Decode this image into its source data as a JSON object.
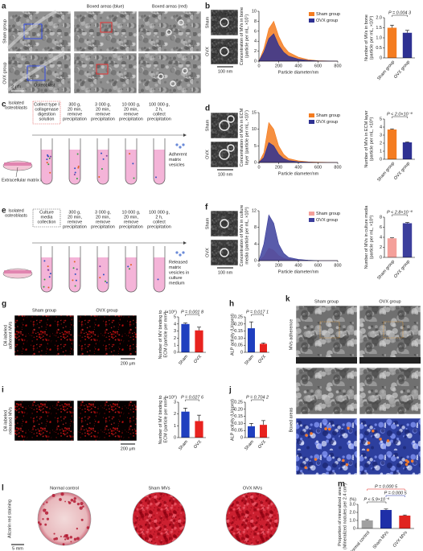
{
  "panel_letters": [
    "a",
    "b",
    "c",
    "d",
    "e",
    "f",
    "g",
    "h",
    "i",
    "j",
    "k",
    "l",
    "m"
  ],
  "a": {
    "rows": [
      "Sham group",
      "OVX group"
    ],
    "columns": [
      "Boxed areas (blue)",
      "Boxed areas (red)"
    ],
    "cell": "Osteoblast",
    "scale": "2 μm"
  },
  "b": {
    "rows": [
      "Sham",
      "OVX"
    ],
    "scale": "100 nm"
  },
  "c": {
    "start": [
      "Isolated",
      "osteoblasts"
    ],
    "collect": [
      "Collect type I",
      "collagenase",
      "digestion",
      "solution"
    ],
    "steps": [
      [
        "300 g,",
        "20 min,",
        "remove",
        "precipitation"
      ],
      [
        "3 000 g,",
        "20 min,",
        "remove",
        "precipitation"
      ],
      [
        "10 000 g,",
        "20 min,",
        "remove",
        "precipitation"
      ],
      [
        "100 000 g,",
        "2 h,",
        "collect",
        "precipitation"
      ]
    ],
    "layer": "Extracellular matrix layer",
    "product": [
      "Adherent",
      "matrix",
      "vesicles"
    ]
  },
  "d": {
    "rows": [
      "Sham",
      "OVX"
    ],
    "scale": "100 nm"
  },
  "e": {
    "start": [
      "Isolated",
      "osteoblasts"
    ],
    "collect": [
      "Culture",
      "media",
      "collection"
    ],
    "steps": [
      [
        "300 g,",
        "20 min,",
        "remove",
        "precipitation"
      ],
      [
        "3 000 g,",
        "20 min,",
        "remove",
        "precipitation"
      ],
      [
        "10 000 g,",
        "20 min,",
        "remove",
        "precipitation"
      ],
      [
        "100 000 g,",
        "2 h,",
        "collect",
        "precipitation"
      ]
    ],
    "product": [
      "Released",
      "matrix",
      "vesicles in",
      "culture",
      "medium"
    ]
  },
  "f": {
    "rows": [
      "Sham",
      "OVX"
    ],
    "scale": "100 nm"
  },
  "g": {
    "columns": [
      "Sham group",
      "OVX group"
    ],
    "row": [
      "DiI-labeled",
      "adherent MVs"
    ],
    "scale": "200 μm"
  },
  "i": {
    "row": [
      "DiI-labeled",
      "released MVs"
    ],
    "scale": "200 μm"
  },
  "k": {
    "columns": [
      "Sham group",
      "OVX group"
    ],
    "rows": [
      "MVs adherence",
      "Boxed areas"
    ]
  },
  "l": {
    "columns": [
      "Normal control",
      "Sham MVs",
      "OVX MVs"
    ],
    "row": "Alizarin red staining",
    "scale": "5 mm"
  },
  "chart_data": [
    {
      "type": "area",
      "ylabel": [
        "Concentration of MVs in bone",
        "(particle per mL, ×10⁷)"
      ],
      "xlabel": "Particle diameter/nm",
      "x": [
        0,
        50,
        100,
        150,
        200,
        250,
        300,
        400,
        500,
        600,
        800
      ],
      "xlim": [
        0,
        800
      ],
      "xticks": [
        0,
        200,
        400,
        600,
        800
      ],
      "ylim": [
        0,
        10
      ],
      "yticks": [
        0,
        2,
        4,
        6,
        8,
        10
      ],
      "series": [
        {
          "name": "Sham group",
          "color": "#f47c20",
          "values": [
            0,
            2.5,
            6.5,
            8,
            5,
            3,
            1.8,
            0.8,
            0.3,
            0.1,
            0
          ]
        },
        {
          "name": "OVX group",
          "color": "#2e3192",
          "values": [
            0,
            1.8,
            4.5,
            5.5,
            3.2,
            1.8,
            1,
            0.4,
            0.15,
            0.05,
            0
          ]
        }
      ]
    },
    {
      "type": "bar",
      "ylabel": [
        "Number of MVs in bone",
        "(particle per mL, ×10⁸)"
      ],
      "categories": [
        "Sham group",
        "OVX group"
      ],
      "values": [
        1.5,
        1.25
      ],
      "errors": [
        0.13,
        0.12
      ],
      "colors": [
        "#f47c20",
        "#2e3192"
      ],
      "ylim": [
        0,
        2
      ],
      "yticks": [
        0,
        {
          "value": 0.5,
          "label": "0.5"
        },
        {
          "value": 1,
          "label": "1.0"
        },
        {
          "value": 1.5,
          "label": "1.5"
        },
        {
          "value": 2,
          "label": "2.0"
        }
      ],
      "annotations": [
        "P = 0.004 3"
      ]
    },
    {
      "type": "area",
      "ylabel": [
        "Concentration of MVs in ECM",
        "layer (particle per mL, ×10⁷)"
      ],
      "xlabel": "Particle diameter/nm",
      "x": [
        0,
        50,
        100,
        150,
        200,
        250,
        300,
        400,
        500,
        600,
        800
      ],
      "xlim": [
        0,
        800
      ],
      "xticks": [
        0,
        200,
        400,
        600,
        800
      ],
      "ylim": [
        0,
        15
      ],
      "yticks": [
        0,
        5,
        10,
        15
      ],
      "series": [
        {
          "name": "Sham group",
          "color": "#f47c20",
          "values": [
            0,
            3,
            12,
            10,
            5,
            2.5,
            1.2,
            0.5,
            0.2,
            0.1,
            0
          ]
        },
        {
          "name": "OVX group",
          "color": "#2e3192",
          "values": [
            0,
            1.5,
            6,
            5,
            2.5,
            1.2,
            0.6,
            0.2,
            0.1,
            0,
            0
          ]
        }
      ]
    },
    {
      "type": "bar",
      "ylabel": [
        "Number of MVs in ECM layer",
        "(particle per mL, ×10⁸)"
      ],
      "categories": [
        "Sham group",
        "OVX group"
      ],
      "values": [
        3.7,
        2.1
      ],
      "errors": [
        0.08,
        0.05
      ],
      "colors": [
        "#f47c20",
        "#2e3192"
      ],
      "ylim": [
        0,
        5
      ],
      "yticks": [
        0,
        1,
        2,
        3,
        4,
        5
      ],
      "annotations": [
        "P < 2.0×10⁻⁸"
      ]
    },
    {
      "type": "area",
      "ylabel": [
        "Concentration of MVs in culture",
        "media (particle per mL, ×10⁶)"
      ],
      "xlabel": "Particle diameter/nm",
      "x": [
        0,
        50,
        100,
        150,
        200,
        250,
        300,
        400,
        500,
        600,
        800
      ],
      "xlim": [
        0,
        800
      ],
      "xticks": [
        0,
        200,
        400,
        600,
        800
      ],
      "ylim": [
        0,
        12
      ],
      "yticks": [
        0,
        4,
        8,
        12
      ],
      "series": [
        {
          "name": "Sham group",
          "color": "#f4a09a",
          "values": [
            0,
            1,
            3,
            2.5,
            1.2,
            0.6,
            0.3,
            0.1,
            0,
            0,
            0
          ]
        },
        {
          "name": "OVX group",
          "color": "#3c3f9c",
          "values": [
            0,
            4,
            11,
            9,
            4,
            1.8,
            0.8,
            0.3,
            0.1,
            0,
            0
          ]
        }
      ]
    },
    {
      "type": "bar",
      "ylabel": [
        "Number of MVs in culture media",
        "(particle per mL, ×10⁸)"
      ],
      "categories": [
        "Sham group",
        "OVX group"
      ],
      "values": [
        3.8,
        6.8
      ],
      "errors": [
        0.1,
        0.15
      ],
      "colors": [
        "#f4a09a",
        "#3c3f9c"
      ],
      "ylim": [
        0,
        8
      ],
      "yticks": [
        0,
        2,
        4,
        6,
        8
      ],
      "annotations": [
        "P < 2.8×10⁻⁸"
      ]
    },
    {
      "type": "bar",
      "ylabel": [
        "Number of MV binding to",
        "ECM (particle per mm²)"
      ],
      "unit": "(×10⁵)",
      "categories": [
        "Sham",
        "OVX"
      ],
      "values": [
        4.0,
        3.1
      ],
      "errors": [
        0.15,
        0.45
      ],
      "colors": [
        "#1f3fbf",
        "#e8231f"
      ],
      "ylim": [
        0,
        5
      ],
      "yticks": [
        0,
        1,
        2,
        3,
        4,
        5
      ],
      "annotations": [
        "P = 0.001 8"
      ]
    },
    {
      "type": "bar",
      "ylabel": [
        "ALP activity (U/gprot)"
      ],
      "categories": [
        "Sham",
        "OVX"
      ],
      "values": [
        0.17,
        0.06
      ],
      "errors": [
        0.045,
        0.006
      ],
      "colors": [
        "#1f3fbf",
        "#e8231f"
      ],
      "ylim": [
        0,
        0.25
      ],
      "yticks": [
        0,
        {
          "value": 0.05,
          "label": "0.05"
        },
        {
          "value": 0.1,
          "label": "0.10"
        },
        {
          "value": 0.15,
          "label": "0.15"
        },
        {
          "value": 0.2,
          "label": "0.20"
        },
        {
          "value": 0.25,
          "label": "0.25"
        }
      ],
      "annotations": [
        "P = 0.017 1"
      ]
    },
    {
      "type": "bar",
      "ylabel": [
        "Number of MV binding to",
        "ECM (particle per mm²)"
      ],
      "unit": "(×10⁵)",
      "categories": [
        "Sham",
        "OVX"
      ],
      "values": [
        2.2,
        1.4
      ],
      "errors": [
        0.3,
        0.5
      ],
      "colors": [
        "#1f3fbf",
        "#e8231f"
      ],
      "ylim": [
        0,
        3
      ],
      "yticks": [
        0,
        1,
        2,
        3
      ],
      "annotations": [
        "P = 0.027 6"
      ]
    },
    {
      "type": "bar",
      "ylabel": [
        "ALP activity (U/gprot)"
      ],
      "categories": [
        "Sham",
        "OVX"
      ],
      "values": [
        0.08,
        0.09
      ],
      "errors": [
        0.02,
        0.03
      ],
      "colors": [
        "#1f3fbf",
        "#e8231f"
      ],
      "ylim": [
        0,
        0.25
      ],
      "yticks": [
        0,
        {
          "value": 0.05,
          "label": "0.05"
        },
        {
          "value": 0.1,
          "label": "0.10"
        },
        {
          "value": 0.15,
          "label": "0.15"
        },
        {
          "value": 0.2,
          "label": "0.20"
        },
        {
          "value": 0.25,
          "label": "0.25"
        }
      ],
      "annotations": [
        "P = 0.704 2"
      ]
    },
    {
      "type": "bar",
      "ylabel": [
        "Proportion of mineralized area",
        "(Mineralized nodules per 2.4 cm²)"
      ],
      "unit": "(%)",
      "categories": [
        "Normal control",
        "Sham MVs",
        "OVX MVs"
      ],
      "values": [
        1.0,
        2.3,
        1.6
      ],
      "errors": [
        0.1,
        0.12,
        0.08
      ],
      "colors": [
        "#a0a0a0",
        "#1f2fa8",
        "#e0241f"
      ],
      "ylim": [
        0,
        3
      ],
      "yticks": [
        0,
        {
          "value": 1,
          "label": "1.0"
        },
        {
          "value": 2,
          "label": "2.0"
        },
        {
          "value": 3,
          "label": "3.0"
        }
      ],
      "annotations": [
        "P = 0.000 5",
        "P = 0.000 5",
        "P < 5.9×10⁻⁶"
      ],
      "annotation_colors": [
        "#e0241f",
        "#1f2fa8",
        "#222222"
      ]
    }
  ]
}
